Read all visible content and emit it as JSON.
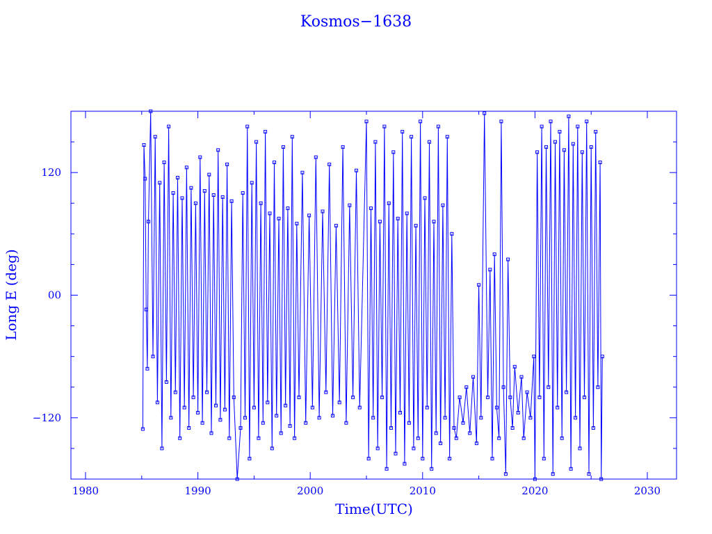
{
  "chart_data": {
    "type": "scatter",
    "title": "Kosmos−1638",
    "xlabel": "Time(UTC)",
    "ylabel": "Long E (deg)",
    "xlim": [
      1978.7,
      2032.6
    ],
    "ylim": [
      -180,
      180
    ],
    "xticks": [
      1980,
      1990,
      2000,
      2010,
      2020,
      2030
    ],
    "xtick_labels": [
      "1980",
      "1990",
      "2000",
      "2010",
      "2020",
      "2030"
    ],
    "yticks": [
      -120,
      0,
      120
    ],
    "ytick_labels": [
      "−120",
      "00",
      "120"
    ],
    "grid": false,
    "color": "#0000ff",
    "marker": "square",
    "line": "connected",
    "series": [
      {
        "points": [
          [
            1985.1,
            -131
          ],
          [
            1985.2,
            147
          ],
          [
            1985.3,
            114
          ],
          [
            1985.4,
            -14
          ],
          [
            1985.5,
            -72
          ],
          [
            1985.6,
            72
          ],
          [
            1985.8,
            180
          ],
          [
            1986.0,
            -60
          ],
          [
            1986.2,
            155
          ],
          [
            1986.4,
            -105
          ],
          [
            1986.6,
            110
          ],
          [
            1986.8,
            -150
          ],
          [
            1987.0,
            130
          ],
          [
            1987.2,
            -85
          ],
          [
            1987.4,
            165
          ],
          [
            1987.6,
            -120
          ],
          [
            1987.8,
            100
          ],
          [
            1988.0,
            -95
          ],
          [
            1988.2,
            115
          ],
          [
            1988.4,
            -140
          ],
          [
            1988.6,
            95
          ],
          [
            1988.8,
            -110
          ],
          [
            1989.0,
            125
          ],
          [
            1989.2,
            -130
          ],
          [
            1989.4,
            105
          ],
          [
            1989.6,
            -100
          ],
          [
            1989.8,
            90
          ],
          [
            1990.0,
            -115
          ],
          [
            1990.2,
            135
          ],
          [
            1990.4,
            -125
          ],
          [
            1990.6,
            102
          ],
          [
            1990.8,
            -95
          ],
          [
            1991.0,
            118
          ],
          [
            1991.2,
            -135
          ],
          [
            1991.4,
            98
          ],
          [
            1991.6,
            -108
          ],
          [
            1991.8,
            142
          ],
          [
            1992.0,
            -122
          ],
          [
            1992.2,
            96
          ],
          [
            1992.4,
            -112
          ],
          [
            1992.6,
            128
          ],
          [
            1992.8,
            -140
          ],
          [
            1993.0,
            92
          ],
          [
            1993.2,
            -100
          ],
          [
            1993.5,
            -180
          ],
          [
            1993.8,
            -130
          ],
          [
            1994.0,
            100
          ],
          [
            1994.2,
            -120
          ],
          [
            1994.4,
            165
          ],
          [
            1994.6,
            -160
          ],
          [
            1994.8,
            110
          ],
          [
            1995.0,
            -110
          ],
          [
            1995.2,
            150
          ],
          [
            1995.4,
            -140
          ],
          [
            1995.6,
            90
          ],
          [
            1995.8,
            -125
          ],
          [
            1996.0,
            160
          ],
          [
            1996.2,
            -105
          ],
          [
            1996.4,
            80
          ],
          [
            1996.6,
            -150
          ],
          [
            1996.8,
            130
          ],
          [
            1997.0,
            -118
          ],
          [
            1997.2,
            75
          ],
          [
            1997.4,
            -135
          ],
          [
            1997.6,
            145
          ],
          [
            1997.8,
            -108
          ],
          [
            1998.0,
            85
          ],
          [
            1998.2,
            -128
          ],
          [
            1998.4,
            155
          ],
          [
            1998.6,
            -140
          ],
          [
            1998.8,
            70
          ],
          [
            1999.0,
            -100
          ],
          [
            1999.3,
            120
          ],
          [
            1999.6,
            -125
          ],
          [
            1999.9,
            78
          ],
          [
            2000.2,
            -110
          ],
          [
            2000.5,
            135
          ],
          [
            2000.8,
            -120
          ],
          [
            2001.1,
            82
          ],
          [
            2001.4,
            -95
          ],
          [
            2001.7,
            128
          ],
          [
            2002.0,
            -118
          ],
          [
            2002.3,
            68
          ],
          [
            2002.6,
            -105
          ],
          [
            2002.9,
            145
          ],
          [
            2003.2,
            -125
          ],
          [
            2003.5,
            88
          ],
          [
            2003.8,
            -100
          ],
          [
            2004.1,
            122
          ],
          [
            2004.4,
            -110
          ],
          [
            2005.0,
            170
          ],
          [
            2005.2,
            -160
          ],
          [
            2005.4,
            85
          ],
          [
            2005.6,
            -120
          ],
          [
            2005.8,
            150
          ],
          [
            2006.0,
            -150
          ],
          [
            2006.2,
            72
          ],
          [
            2006.4,
            -100
          ],
          [
            2006.6,
            165
          ],
          [
            2006.8,
            -170
          ],
          [
            2007.0,
            90
          ],
          [
            2007.2,
            -130
          ],
          [
            2007.4,
            140
          ],
          [
            2007.6,
            -155
          ],
          [
            2007.8,
            75
          ],
          [
            2008.0,
            -115
          ],
          [
            2008.2,
            160
          ],
          [
            2008.4,
            -165
          ],
          [
            2008.6,
            80
          ],
          [
            2008.8,
            -125
          ],
          [
            2009.0,
            155
          ],
          [
            2009.2,
            -150
          ],
          [
            2009.4,
            68
          ],
          [
            2009.6,
            -140
          ],
          [
            2009.8,
            170
          ],
          [
            2010.0,
            -160
          ],
          [
            2010.2,
            95
          ],
          [
            2010.4,
            -110
          ],
          [
            2010.6,
            150
          ],
          [
            2010.8,
            -170
          ],
          [
            2011.0,
            72
          ],
          [
            2011.2,
            -135
          ],
          [
            2011.4,
            165
          ],
          [
            2011.6,
            -145
          ],
          [
            2011.8,
            88
          ],
          [
            2012.0,
            -120
          ],
          [
            2012.2,
            155
          ],
          [
            2012.4,
            -160
          ],
          [
            2012.6,
            60
          ],
          [
            2012.8,
            -130
          ],
          [
            2013.0,
            -140
          ],
          [
            2013.3,
            -100
          ],
          [
            2013.6,
            -125
          ],
          [
            2013.9,
            -90
          ],
          [
            2014.2,
            -135
          ],
          [
            2014.5,
            -80
          ],
          [
            2014.8,
            -145
          ],
          [
            2015.0,
            10
          ],
          [
            2015.2,
            -120
          ],
          [
            2015.5,
            178
          ],
          [
            2015.8,
            -100
          ],
          [
            2016.0,
            25
          ],
          [
            2016.2,
            -160
          ],
          [
            2016.4,
            40
          ],
          [
            2016.6,
            -110
          ],
          [
            2016.8,
            -140
          ],
          [
            2017.0,
            170
          ],
          [
            2017.2,
            -90
          ],
          [
            2017.4,
            -175
          ],
          [
            2017.6,
            35
          ],
          [
            2017.8,
            -100
          ],
          [
            2018.0,
            -130
          ],
          [
            2018.2,
            -70
          ],
          [
            2018.5,
            -115
          ],
          [
            2018.8,
            -80
          ],
          [
            2019.0,
            -140
          ],
          [
            2019.3,
            -95
          ],
          [
            2019.6,
            -120
          ],
          [
            2019.9,
            -60
          ],
          [
            2020.0,
            -180
          ],
          [
            2020.2,
            140
          ],
          [
            2020.4,
            -100
          ],
          [
            2020.6,
            165
          ],
          [
            2020.8,
            -160
          ],
          [
            2021.0,
            145
          ],
          [
            2021.2,
            -90
          ],
          [
            2021.4,
            170
          ],
          [
            2021.6,
            -175
          ],
          [
            2021.8,
            150
          ],
          [
            2022.0,
            -110
          ],
          [
            2022.2,
            160
          ],
          [
            2022.4,
            -140
          ],
          [
            2022.6,
            142
          ],
          [
            2022.8,
            -95
          ],
          [
            2023.0,
            175
          ],
          [
            2023.2,
            -170
          ],
          [
            2023.4,
            148
          ],
          [
            2023.6,
            -120
          ],
          [
            2023.8,
            165
          ],
          [
            2024.0,
            -150
          ],
          [
            2024.2,
            140
          ],
          [
            2024.4,
            -100
          ],
          [
            2024.6,
            170
          ],
          [
            2024.8,
            -175
          ],
          [
            2025.0,
            145
          ],
          [
            2025.2,
            -130
          ],
          [
            2025.4,
            160
          ],
          [
            2025.6,
            -90
          ],
          [
            2025.8,
            130
          ],
          [
            2025.9,
            -180
          ],
          [
            2026.0,
            -60
          ]
        ]
      }
    ]
  }
}
